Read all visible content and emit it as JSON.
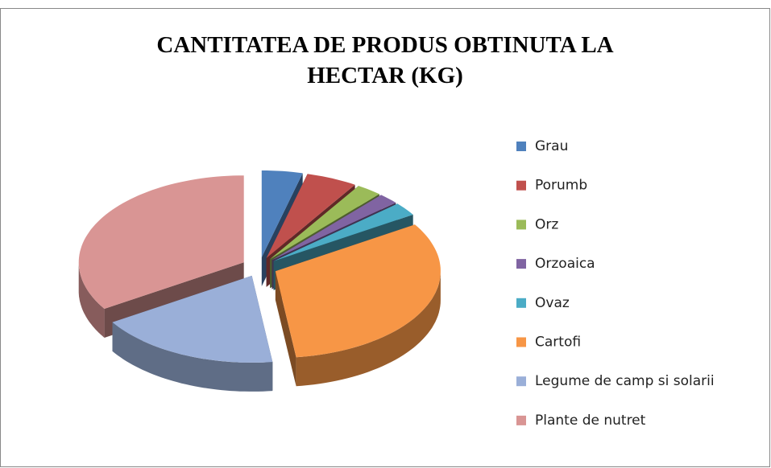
{
  "chart_data": {
    "type": "pie",
    "title": "CANTITATEA DE PRODUS OBTINUTA LA HECTAR (KG)",
    "categories": [
      "Grau",
      "Porumb",
      "Orz",
      "Orzoaica",
      "Ovaz",
      "Cartofi",
      "Legume de camp si solarii",
      "Plante de nutret"
    ],
    "values": [
      4,
      5,
      2.5,
      2,
      2.5,
      32,
      18,
      34
    ],
    "colors": [
      "#4f81bd",
      "#c0504d",
      "#9bbb59",
      "#8064a2",
      "#4bacc6",
      "#f79646",
      "#9aafd8",
      "#d99594"
    ],
    "legend": "right"
  }
}
